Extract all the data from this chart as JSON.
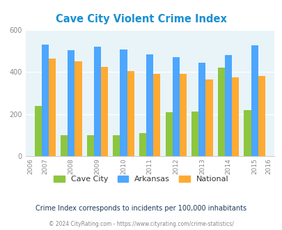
{
  "title": "Cave City Violent Crime Index",
  "years": [
    2006,
    2007,
    2008,
    2009,
    2010,
    2011,
    2012,
    2013,
    2014,
    2015,
    2016
  ],
  "data_years": [
    2007,
    2008,
    2009,
    2010,
    2011,
    2012,
    2013,
    2014,
    2015
  ],
  "cave_city": [
    240,
    100,
    100,
    100,
    110,
    210,
    212,
    420,
    218
  ],
  "arkansas": [
    530,
    503,
    520,
    508,
    483,
    470,
    443,
    480,
    527
  ],
  "national": [
    463,
    450,
    425,
    405,
    390,
    390,
    365,
    375,
    383
  ],
  "colors": {
    "cave_city": "#8dc63f",
    "arkansas": "#4da6ff",
    "national": "#ffaa33"
  },
  "ylim": [
    0,
    600
  ],
  "yticks": [
    0,
    200,
    400,
    600
  ],
  "plot_bg": "#e8f4f8",
  "title_color": "#1a8fd1",
  "subtitle": "Crime Index corresponds to incidents per 100,000 inhabitants",
  "subtitle_color": "#1a3a5c",
  "footer": "© 2024 CityRating.com - https://www.cityrating.com/crime-statistics/",
  "footer_color": "#888888",
  "footer_link_color": "#4da6ff",
  "bar_width": 0.27,
  "legend_labels": [
    "Cave City",
    "Arkansas",
    "National"
  ]
}
